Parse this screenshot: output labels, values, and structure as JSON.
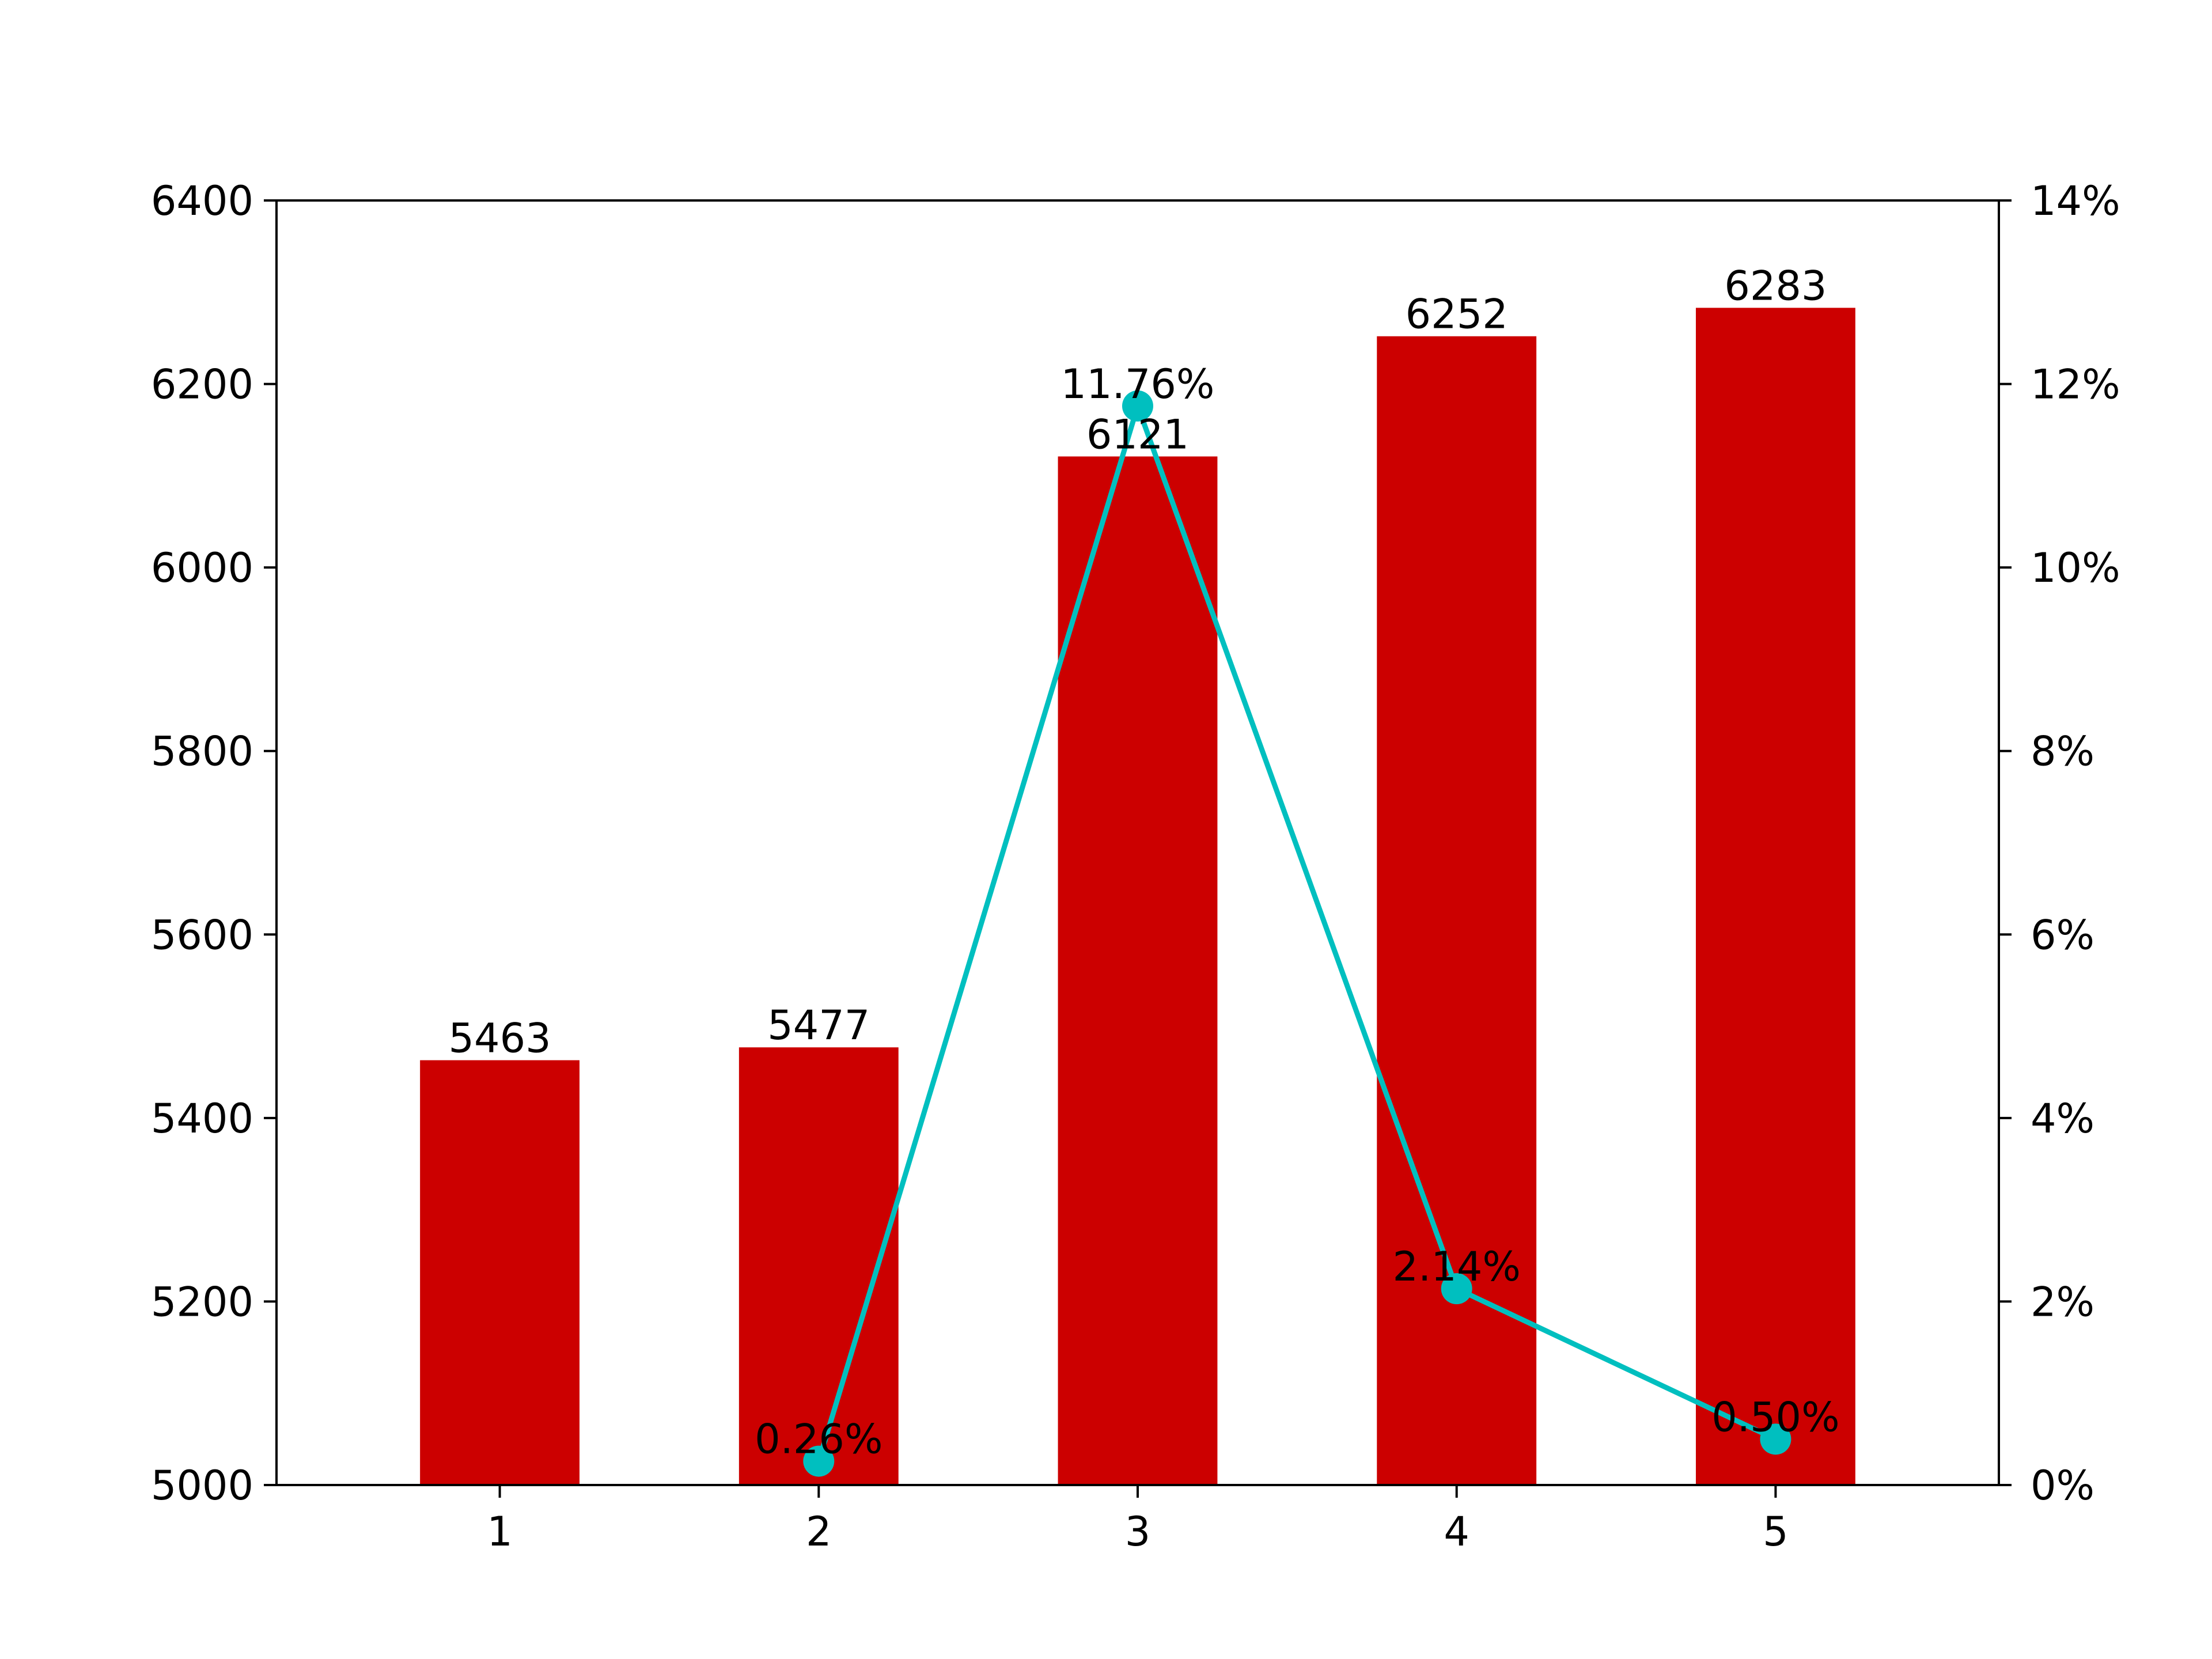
{
  "chart_data": {
    "type": "bar",
    "categories": [
      "1",
      "2",
      "3",
      "4",
      "5"
    ],
    "series": [
      {
        "type": "bar",
        "axis": "left",
        "values": [
          5463,
          5477,
          6121,
          6252,
          6283
        ],
        "value_labels": [
          "5463",
          "5477",
          "6121",
          "6252",
          "6283"
        ],
        "color": "#cc0000"
      },
      {
        "type": "line",
        "axis": "right",
        "x": [
          "2",
          "3",
          "4",
          "5"
        ],
        "values": [
          0.26,
          11.76,
          2.14,
          0.5
        ],
        "value_labels": [
          "0.26%",
          "11.76%",
          "2.14%",
          "0.50%"
        ],
        "color": "#00bfbf"
      }
    ],
    "left_axis": {
      "ylim": [
        5000,
        6400
      ],
      "ticks": [
        5000,
        5200,
        5400,
        5600,
        5800,
        6000,
        6200,
        6400
      ],
      "tick_labels": [
        "5000",
        "5200",
        "5400",
        "5600",
        "5800",
        "6000",
        "6200",
        "6400"
      ]
    },
    "right_axis": {
      "ylim": [
        0,
        14
      ],
      "ticks": [
        0,
        2,
        4,
        6,
        8,
        10,
        12,
        14
      ],
      "tick_labels": [
        "0%",
        "2%",
        "4%",
        "6%",
        "8%",
        "10%",
        "12%",
        "14%"
      ]
    },
    "x_tick_labels": [
      "1",
      "2",
      "3",
      "4",
      "5"
    ],
    "title": "",
    "xlabel": "",
    "ylabel": "",
    "grid": false,
    "legend": false
  }
}
